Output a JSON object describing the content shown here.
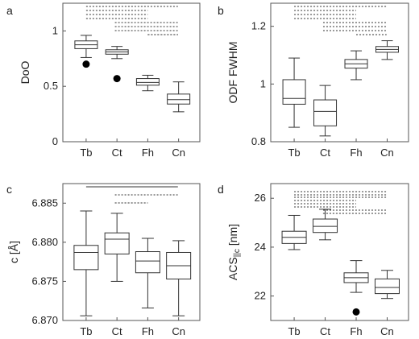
{
  "chart_data": [
    {
      "panel": "a",
      "type": "box",
      "ylabel": "DoO",
      "ylim": [
        0,
        1.25
      ],
      "yticks": [
        "0",
        "0.5",
        "1"
      ],
      "categories": [
        "Tb",
        "Ct",
        "Fh",
        "Cn"
      ],
      "boxes": [
        {
          "category": "Tb",
          "whisker_low": 0.76,
          "q1": 0.84,
          "median": 0.875,
          "q3": 0.91,
          "whisker_high": 0.96,
          "outliers": [
            0.7
          ]
        },
        {
          "category": "Ct",
          "whisker_low": 0.75,
          "q1": 0.79,
          "median": 0.81,
          "q3": 0.83,
          "whisker_high": 0.86,
          "outliers": [
            0.57
          ]
        },
        {
          "category": "Fh",
          "whisker_low": 0.46,
          "q1": 0.51,
          "median": 0.535,
          "q3": 0.57,
          "whisker_high": 0.6,
          "outliers": []
        },
        {
          "category": "Cn",
          "whisker_low": 0.27,
          "q1": 0.34,
          "median": 0.38,
          "q3": 0.43,
          "whisker_high": 0.54,
          "outliers": []
        }
      ],
      "significance_bars": [
        {
          "from": "Tb",
          "to": "Cn",
          "lines": 1
        },
        {
          "from": "Tb",
          "to": "Fh",
          "lines": 3
        },
        {
          "from": "Ct",
          "to": "Cn",
          "lines": 3
        },
        {
          "from": "Fh",
          "to": "Cn",
          "lines": 3
        }
      ]
    },
    {
      "panel": "b",
      "type": "box",
      "ylabel": "ODF FWHM",
      "ylim": [
        0.8,
        1.28
      ],
      "yticks": [
        "0.8",
        "1",
        "1.2"
      ],
      "categories": [
        "Tb",
        "Ct",
        "Fh",
        "Cn"
      ],
      "boxes": [
        {
          "category": "Tb",
          "whisker_low": 0.85,
          "q1": 0.93,
          "median": 0.95,
          "q3": 1.015,
          "whisker_high": 1.09,
          "outliers": []
        },
        {
          "category": "Ct",
          "whisker_low": 0.82,
          "q1": 0.855,
          "median": 0.905,
          "q3": 0.945,
          "whisker_high": 0.995,
          "outliers": []
        },
        {
          "category": "Fh",
          "whisker_low": 1.015,
          "q1": 1.055,
          "median": 1.07,
          "q3": 1.085,
          "whisker_high": 1.115,
          "outliers": []
        },
        {
          "category": "Cn",
          "whisker_low": 1.085,
          "q1": 1.11,
          "median": 1.12,
          "q3": 1.13,
          "whisker_high": 1.15,
          "outliers": []
        }
      ],
      "significance_bars": [
        {
          "from": "Tb",
          "to": "Cn",
          "lines": 1
        },
        {
          "from": "Tb",
          "to": "Fh",
          "lines": 3
        },
        {
          "from": "Ct",
          "to": "Cn",
          "lines": 3
        },
        {
          "from": "Fh",
          "to": "Cn",
          "lines": 3
        }
      ]
    },
    {
      "panel": "c",
      "type": "box",
      "ylabel": "c [Å]",
      "ylim": [
        6.87,
        6.8875
      ],
      "yticks": [
        "6.870",
        "6.875",
        "6.880",
        "6.885"
      ],
      "categories": [
        "Tb",
        "Ct",
        "Fh",
        "Cn"
      ],
      "boxes": [
        {
          "category": "Tb",
          "whisker_low": 6.8706,
          "q1": 6.8765,
          "median": 6.8787,
          "q3": 6.8796,
          "whisker_high": 6.884,
          "outliers": []
        },
        {
          "category": "Ct",
          "whisker_low": 6.875,
          "q1": 6.8785,
          "median": 6.8804,
          "q3": 6.8812,
          "whisker_high": 6.8837,
          "outliers": []
        },
        {
          "category": "Fh",
          "whisker_low": 6.8716,
          "q1": 6.8761,
          "median": 6.8776,
          "q3": 6.8788,
          "whisker_high": 6.8805,
          "outliers": []
        },
        {
          "category": "Cn",
          "whisker_low": 6.8706,
          "q1": 6.8753,
          "median": 6.877,
          "q3": 6.8787,
          "whisker_high": 6.8802,
          "outliers": []
        }
      ],
      "significance_bars": [
        {
          "from": "Tb",
          "to": "Cn",
          "lines": 1,
          "style": "solid"
        },
        {
          "from": "Ct",
          "to": "Cn",
          "lines": 1
        },
        {
          "from": "Ct",
          "to": "Fh",
          "lines": 2
        }
      ]
    },
    {
      "panel": "d",
      "type": "box",
      "ylabel": "ACS||c [nm]",
      "ylim": [
        21,
        26.6
      ],
      "yticks": [
        "22",
        "24",
        "26"
      ],
      "categories": [
        "Tb",
        "Ct",
        "Fh",
        "Cn"
      ],
      "boxes": [
        {
          "category": "Tb",
          "whisker_low": 23.9,
          "q1": 24.15,
          "median": 24.4,
          "q3": 24.65,
          "whisker_high": 25.3,
          "outliers": []
        },
        {
          "category": "Ct",
          "whisker_low": 24.3,
          "q1": 24.6,
          "median": 24.85,
          "q3": 25.15,
          "whisker_high": 25.55,
          "outliers": []
        },
        {
          "category": "Fh",
          "whisker_low": 22.15,
          "q1": 22.55,
          "median": 22.75,
          "q3": 22.95,
          "whisker_high": 23.45,
          "outliers": [
            21.35
          ]
        },
        {
          "category": "Cn",
          "whisker_low": 21.9,
          "q1": 22.1,
          "median": 22.35,
          "q3": 22.7,
          "whisker_high": 23.05,
          "outliers": []
        }
      ],
      "significance_bars": [
        {
          "from": "Tb",
          "to": "Cn",
          "lines": 3
        },
        {
          "from": "Tb",
          "to": "Fh",
          "lines": 3
        },
        {
          "from": "Ct",
          "to": "Cn",
          "lines": 3
        },
        {
          "from": "Ct",
          "to": "Fh",
          "lines": 3
        }
      ]
    }
  ]
}
